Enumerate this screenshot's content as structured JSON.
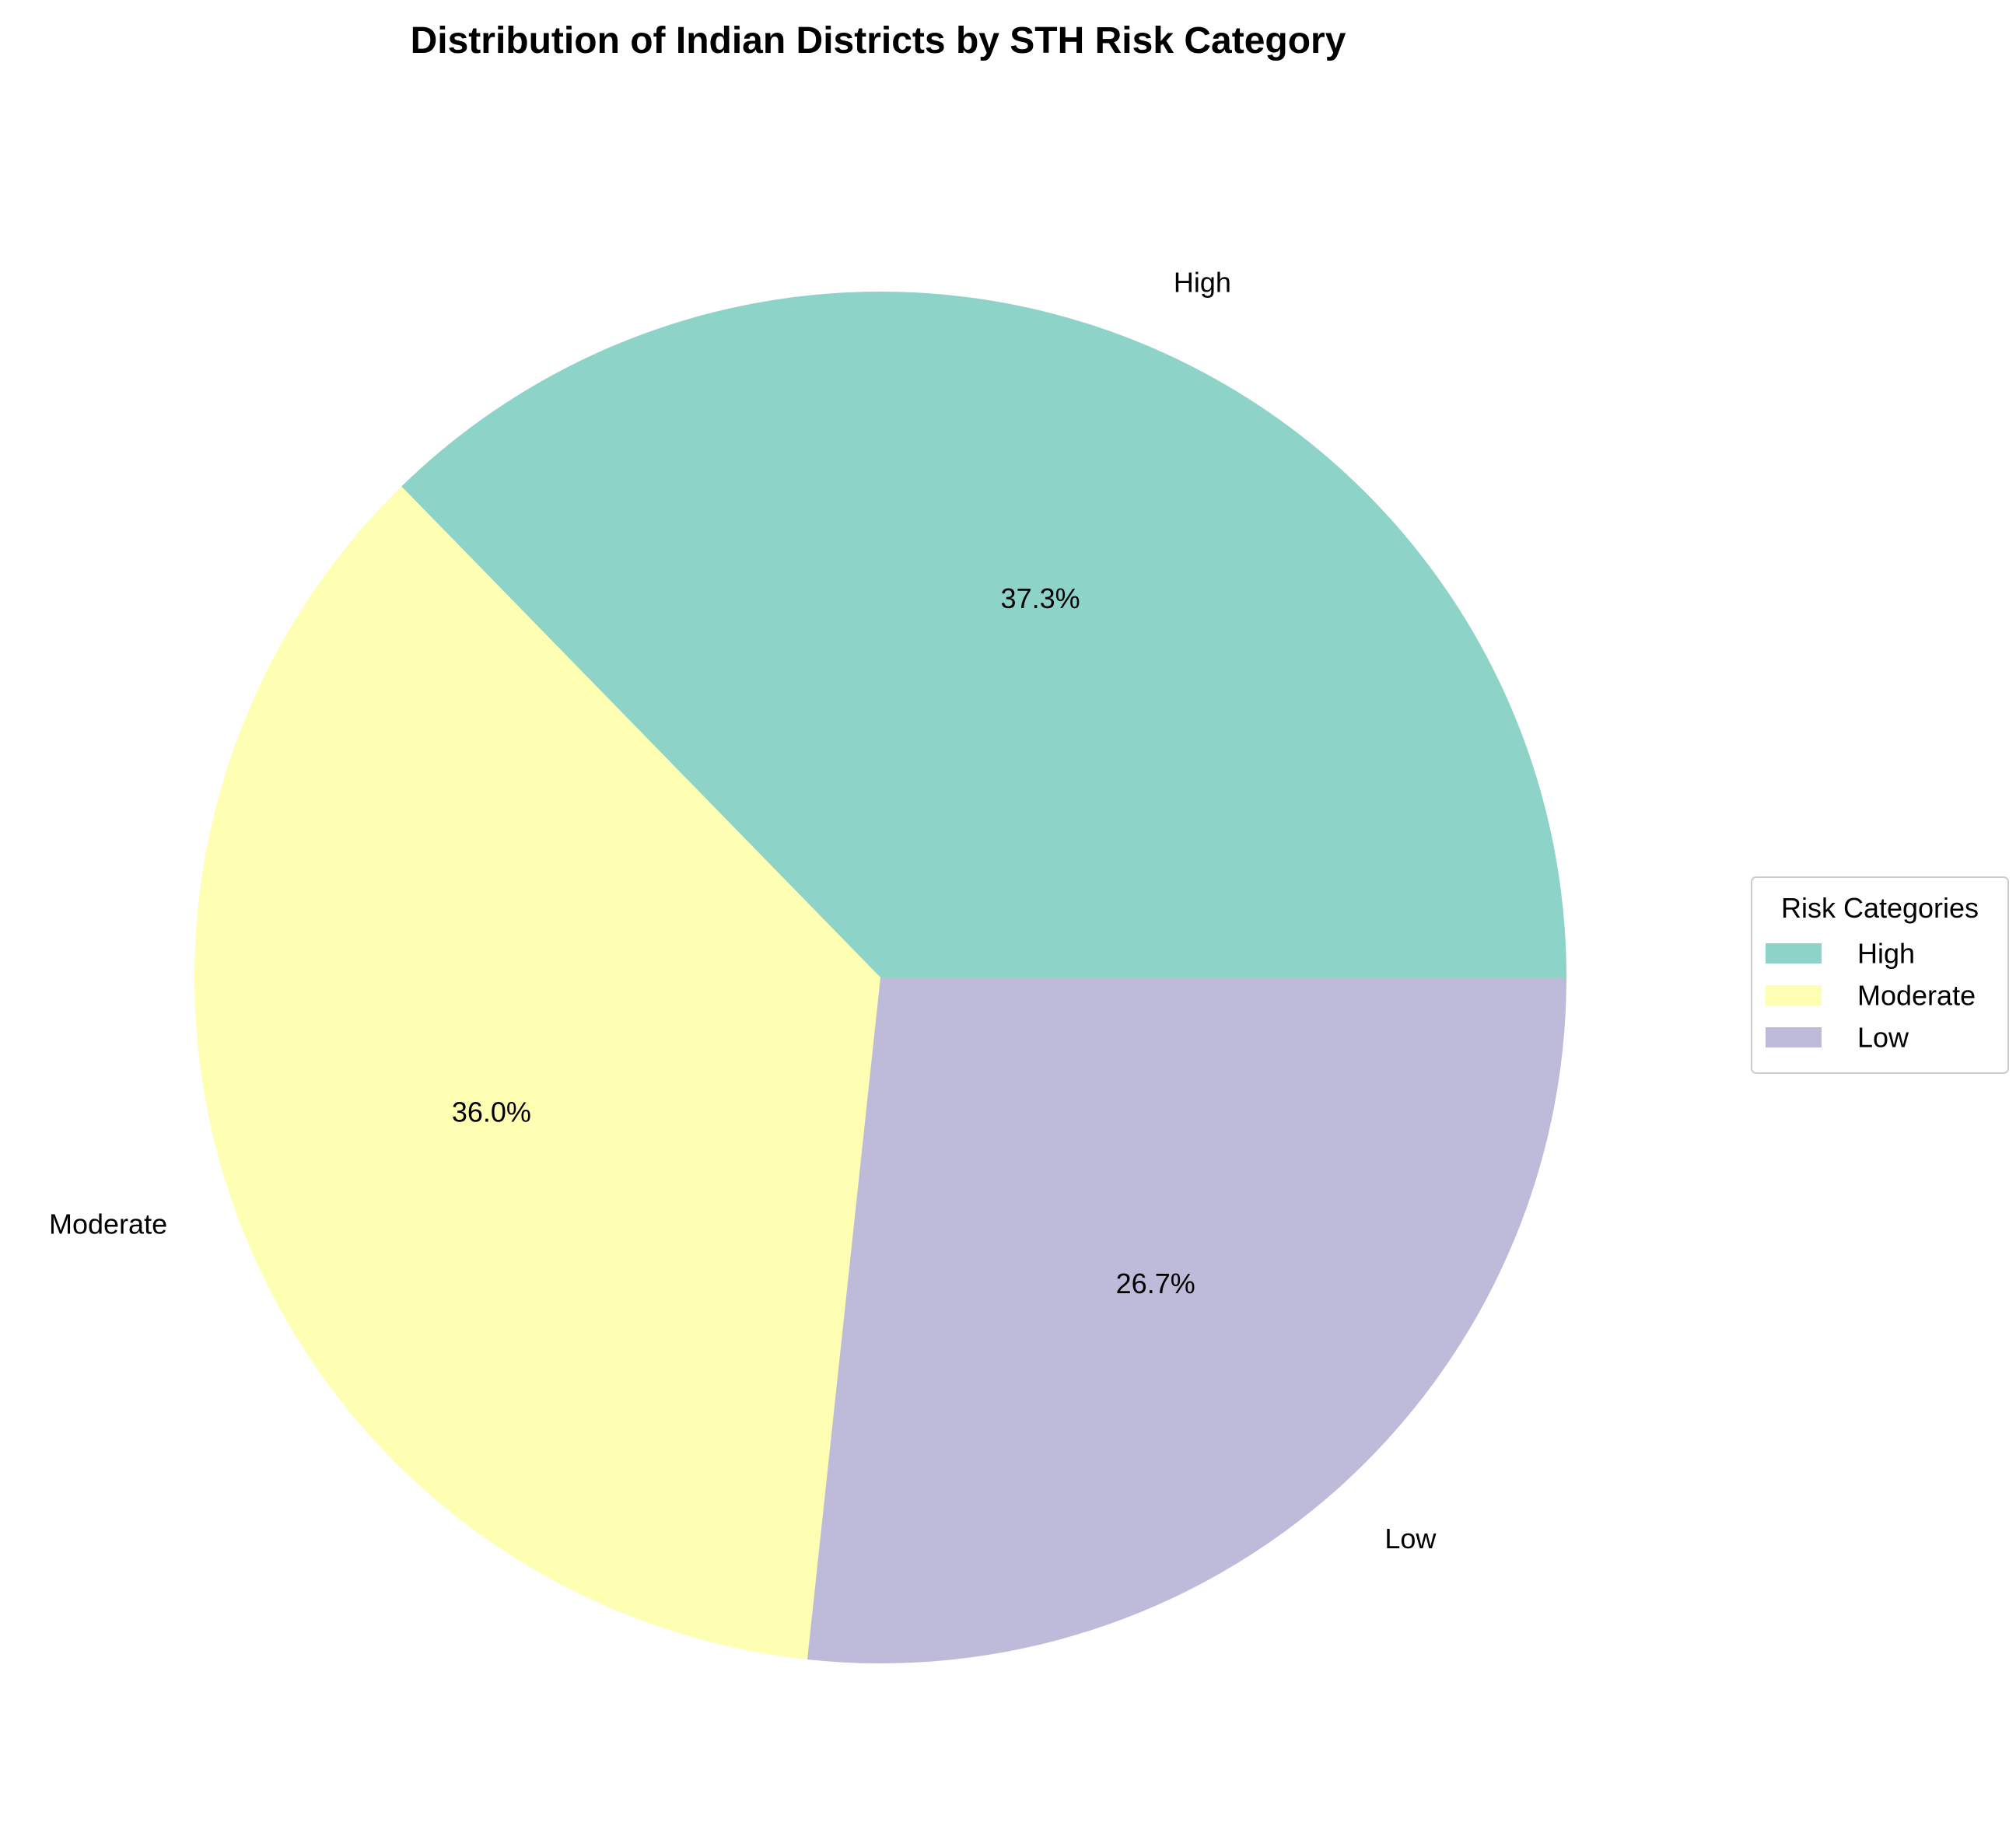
{
  "chart_data": {
    "type": "pie",
    "title": "Distribution of Indian Districts by STH Risk Category",
    "categories": [
      "High",
      "Moderate",
      "Low"
    ],
    "values": [
      37.3,
      36.0,
      26.7
    ],
    "percent_labels": [
      "37.3%",
      "36.0%",
      "26.7%"
    ],
    "colors": [
      "#8dd3c7",
      "#ffffb3",
      "#bebada"
    ],
    "start_angle_deg": 0,
    "direction": "counterclockwise",
    "legend": {
      "title": "Risk Categories",
      "entries": [
        "High",
        "Moderate",
        "Low"
      ],
      "placement": "center-right"
    }
  }
}
